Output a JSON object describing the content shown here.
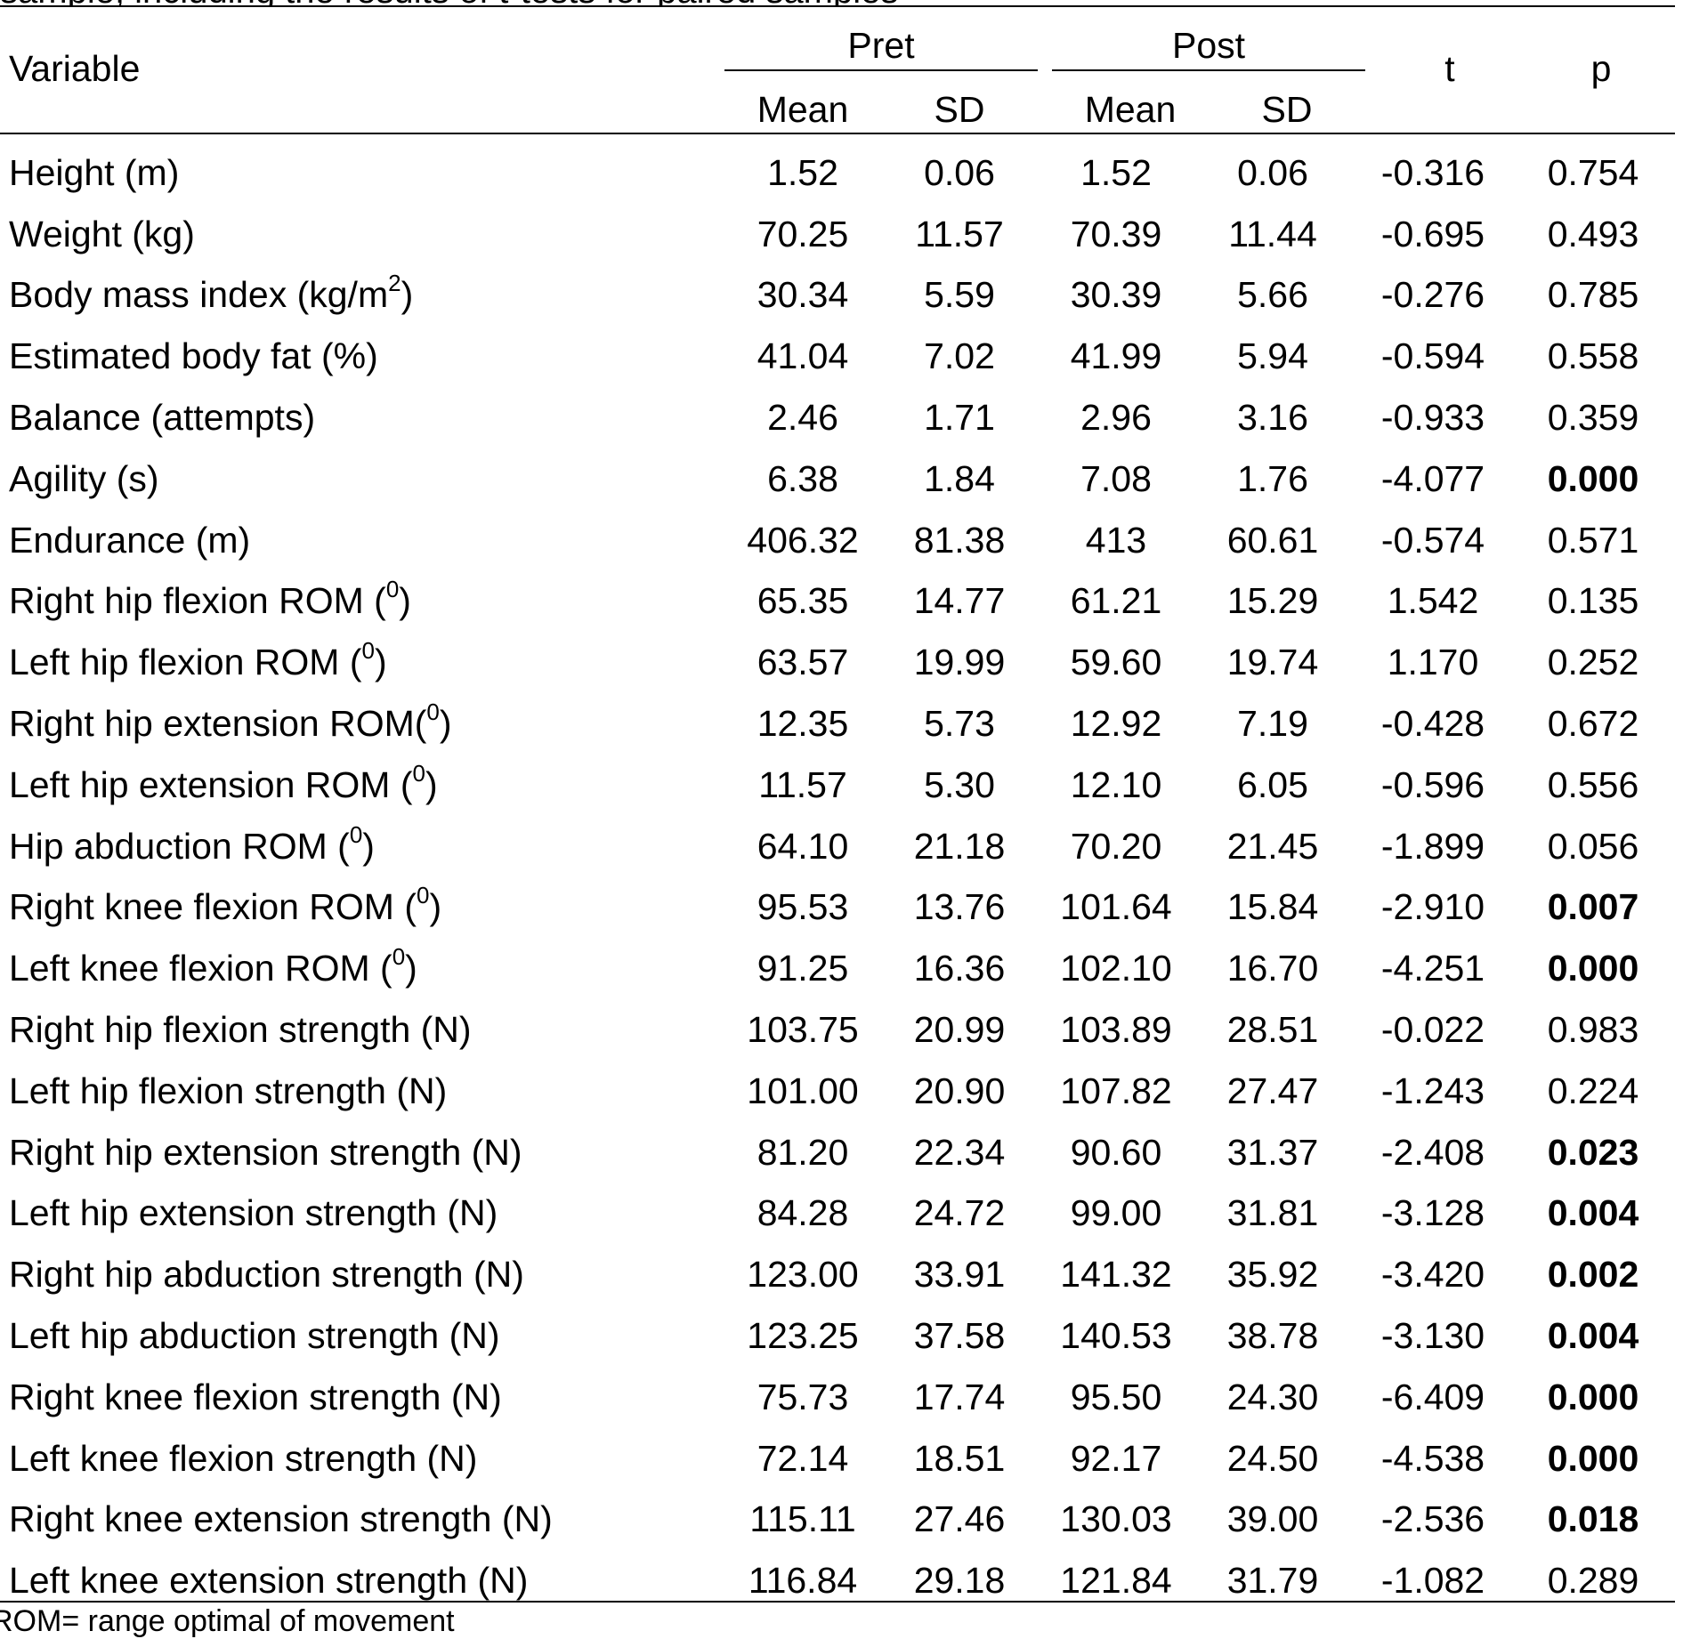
{
  "caption_fragment": "sample, including the results of t-tests for paired samples",
  "header": {
    "variable": "Variable",
    "groups": [
      "Pret",
      "Post"
    ],
    "subcolumns": [
      "Mean",
      "SD",
      "Mean",
      "SD"
    ],
    "t": "t",
    "p": "p"
  },
  "rows": [
    {
      "var": "Height (m)",
      "sup": "",
      "suffix": "",
      "pre_mean": "1.52",
      "pre_sd": "0.06",
      "post_mean": "1.52",
      "post_sd": "0.06",
      "t": "-0.316",
      "p": "0.754",
      "bold": false
    },
    {
      "var": "Weight (kg)",
      "sup": "",
      "suffix": "",
      "pre_mean": "70.25",
      "pre_sd": "11.57",
      "post_mean": "70.39",
      "post_sd": "11.44",
      "t": "-0.695",
      "p": "0.493",
      "bold": false
    },
    {
      "var": "Body mass index (kg/m",
      "sup": "2",
      "suffix": ")",
      "pre_mean": "30.34",
      "pre_sd": "5.59",
      "post_mean": "30.39",
      "post_sd": "5.66",
      "t": "-0.276",
      "p": "0.785",
      "bold": false
    },
    {
      "var": "Estimated body fat (%)",
      "sup": "",
      "suffix": "",
      "pre_mean": "41.04",
      "pre_sd": "7.02",
      "post_mean": "41.99",
      "post_sd": "5.94",
      "t": "-0.594",
      "p": "0.558",
      "bold": false
    },
    {
      "var": "Balance (attempts)",
      "sup": "",
      "suffix": "",
      "pre_mean": "2.46",
      "pre_sd": "1.71",
      "post_mean": "2.96",
      "post_sd": "3.16",
      "t": "-0.933",
      "p": "0.359",
      "bold": false
    },
    {
      "var": "Agility (s)",
      "sup": "",
      "suffix": "",
      "pre_mean": "6.38",
      "pre_sd": "1.84",
      "post_mean": "7.08",
      "post_sd": "1.76",
      "t": "-4.077",
      "p": "0.000",
      "bold": true
    },
    {
      "var": "Endurance (m)",
      "sup": "",
      "suffix": "",
      "pre_mean": "406.32",
      "pre_sd": "81.38",
      "post_mean": "413",
      "post_sd": "60.61",
      "t": "-0.574",
      "p": "0.571",
      "bold": false
    },
    {
      "var": "Right hip flexion ROM (",
      "sup": "0",
      "suffix": ")",
      "pre_mean": "65.35",
      "pre_sd": "14.77",
      "post_mean": "61.21",
      "post_sd": "15.29",
      "t": "1.542",
      "p": "0.135",
      "bold": false
    },
    {
      "var": "Left hip flexion ROM (",
      "sup": "0",
      "suffix": ")",
      "pre_mean": "63.57",
      "pre_sd": "19.99",
      "post_mean": "59.60",
      "post_sd": "19.74",
      "t": "1.170",
      "p": "0.252",
      "bold": false
    },
    {
      "var": "Right hip extension ROM(",
      "sup": "0",
      "suffix": ")",
      "pre_mean": "12.35",
      "pre_sd": "5.73",
      "post_mean": "12.92",
      "post_sd": "7.19",
      "t": "-0.428",
      "p": "0.672",
      "bold": false
    },
    {
      "var": "Left hip extension ROM (",
      "sup": "0",
      "suffix": ")",
      "pre_mean": "11.57",
      "pre_sd": "5.30",
      "post_mean": "12.10",
      "post_sd": "6.05",
      "t": "-0.596",
      "p": "0.556",
      "bold": false
    },
    {
      "var": "Hip abduction ROM (",
      "sup": "0",
      "suffix": ")",
      "pre_mean": "64.10",
      "pre_sd": "21.18",
      "post_mean": "70.20",
      "post_sd": "21.45",
      "t": "-1.899",
      "p": "0.056",
      "bold": false
    },
    {
      "var": "Right knee flexion ROM (",
      "sup": "0",
      "suffix": ")",
      "pre_mean": "95.53",
      "pre_sd": "13.76",
      "post_mean": "101.64",
      "post_sd": "15.84",
      "t": "-2.910",
      "p": "0.007",
      "bold": true
    },
    {
      "var": "Left knee flexion ROM (",
      "sup": "0",
      "suffix": ")",
      "pre_mean": "91.25",
      "pre_sd": "16.36",
      "post_mean": "102.10",
      "post_sd": "16.70",
      "t": "-4.251",
      "p": "0.000",
      "bold": true
    },
    {
      "var": "Right hip flexion strength (N)",
      "sup": "",
      "suffix": "",
      "pre_mean": "103.75",
      "pre_sd": "20.99",
      "post_mean": "103.89",
      "post_sd": "28.51",
      "t": "-0.022",
      "p": "0.983",
      "bold": false
    },
    {
      "var": "Left hip flexion strength (N)",
      "sup": "",
      "suffix": "",
      "pre_mean": "101.00",
      "pre_sd": "20.90",
      "post_mean": "107.82",
      "post_sd": "27.47",
      "t": "-1.243",
      "p": "0.224",
      "bold": false
    },
    {
      "var": "Right hip extension strength (N)",
      "sup": "",
      "suffix": "",
      "pre_mean": "81.20",
      "pre_sd": "22.34",
      "post_mean": "90.60",
      "post_sd": "31.37",
      "t": "-2.408",
      "p": "0.023",
      "bold": true
    },
    {
      "var": "Left hip extension strength (N)",
      "sup": "",
      "suffix": "",
      "pre_mean": "84.28",
      "pre_sd": "24.72",
      "post_mean": "99.00",
      "post_sd": "31.81",
      "t": "-3.128",
      "p": "0.004",
      "bold": true
    },
    {
      "var": "Right hip abduction strength (N)",
      "sup": "",
      "suffix": "",
      "pre_mean": "123.00",
      "pre_sd": "33.91",
      "post_mean": "141.32",
      "post_sd": "35.92",
      "t": "-3.420",
      "p": "0.002",
      "bold": true
    },
    {
      "var": "Left hip abduction strength (N)",
      "sup": "",
      "suffix": "",
      "pre_mean": "123.25",
      "pre_sd": "37.58",
      "post_mean": "140.53",
      "post_sd": "38.78",
      "t": "-3.130",
      "p": "0.004",
      "bold": true
    },
    {
      "var": "Right knee flexion strength (N)",
      "sup": "",
      "suffix": "",
      "pre_mean": "75.73",
      "pre_sd": "17.74",
      "post_mean": "95.50",
      "post_sd": "24.30",
      "t": "-6.409",
      "p": "0.000",
      "bold": true
    },
    {
      "var": "Left knee flexion strength (N)",
      "sup": "",
      "suffix": "",
      "pre_mean": "72.14",
      "pre_sd": "18.51",
      "post_mean": "92.17",
      "post_sd": "24.50",
      "t": "-4.538",
      "p": "0.000",
      "bold": true
    },
    {
      "var": "Right knee extension strength (N)",
      "sup": "",
      "suffix": "",
      "pre_mean": "115.11",
      "pre_sd": "27.46",
      "post_mean": "130.03",
      "post_sd": "39.00",
      "t": "-2.536",
      "p": "0.018",
      "bold": true
    },
    {
      "var": "Left knee extension strength (N)",
      "sup": "",
      "suffix": "",
      "pre_mean": "116.84",
      "pre_sd": "29.18",
      "post_mean": "121.84",
      "post_sd": "31.79",
      "t": "-1.082",
      "p": "0.289",
      "bold": false
    }
  ],
  "footnote": "ROM= range optimal of movement"
}
